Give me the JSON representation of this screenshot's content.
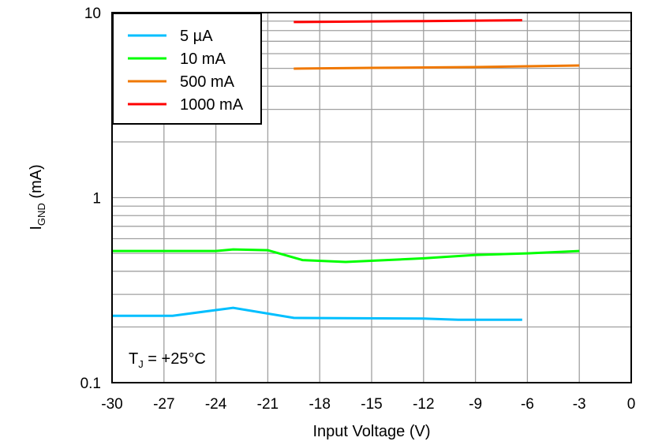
{
  "chart_data": {
    "type": "line",
    "xlabel": "Input Voltage (V)",
    "ylabel_main": "I",
    "ylabel_sub": "GND",
    "ylabel_unit": " (mA)",
    "xlim": [
      -30,
      0
    ],
    "ylim": [
      0.1,
      10
    ],
    "y_scale": "log",
    "grid": true,
    "legend_position": "top-left",
    "x_ticks": [
      "-30",
      "-27",
      "-24",
      "-21",
      "-18",
      "-15",
      "-12",
      "-9",
      "-6",
      "-3",
      "0"
    ],
    "y_ticks": [
      "0.1",
      "1",
      "10"
    ],
    "annotation": {
      "main": "T",
      "sub": "J",
      "rest": " = +25°C"
    },
    "series": [
      {
        "name": "5 µA",
        "color": "#00BFFF",
        "points": [
          [
            -30,
            0.23
          ],
          [
            -26.5,
            0.23
          ],
          [
            -23,
            0.254
          ],
          [
            -19.5,
            0.224
          ],
          [
            -12,
            0.222
          ],
          [
            -10,
            0.219
          ],
          [
            -6.3,
            0.219
          ]
        ]
      },
      {
        "name": "10 mA",
        "color": "#00FF00",
        "points": [
          [
            -30,
            0.515
          ],
          [
            -24,
            0.515
          ],
          [
            -23,
            0.525
          ],
          [
            -21,
            0.52
          ],
          [
            -19,
            0.46
          ],
          [
            -16.5,
            0.449
          ],
          [
            -12,
            0.47
          ],
          [
            -9,
            0.49
          ],
          [
            -6,
            0.5
          ],
          [
            -3,
            0.515
          ]
        ]
      },
      {
        "name": "500 mA",
        "color": "#F07800",
        "points": [
          [
            -19.5,
            4.98
          ],
          [
            -15,
            5.03
          ],
          [
            -9,
            5.08
          ],
          [
            -3,
            5.18
          ]
        ]
      },
      {
        "name": "1000 mA",
        "color": "#FF0000",
        "points": [
          [
            -19.5,
            8.9
          ],
          [
            -12,
            9.0
          ],
          [
            -6.3,
            9.1
          ]
        ]
      }
    ]
  }
}
